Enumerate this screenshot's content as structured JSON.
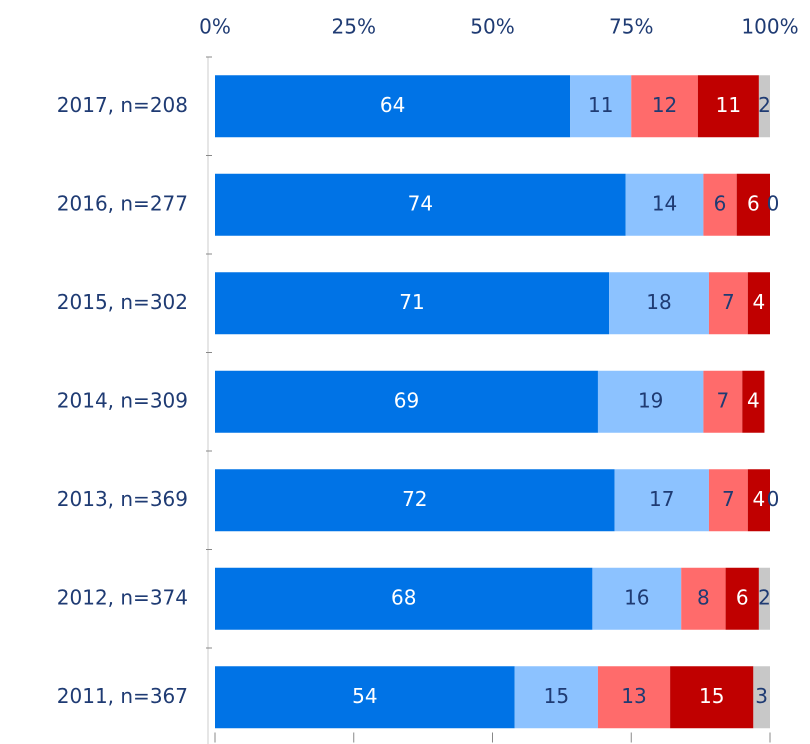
{
  "chart_data": {
    "type": "stacked_barh",
    "categories": [
      "2017,  n=208",
      "2016,  n=277",
      "2015,  n=302",
      "2014,  n=309",
      "2013,  n=369",
      "2012,  n=374",
      "2011,  n=367"
    ],
    "series": [
      {
        "color": "#0073e6",
        "values": [
          64,
          74,
          71,
          69,
          72,
          68,
          54
        ]
      },
      {
        "color": "#8cc2ff",
        "values": [
          11,
          14,
          18,
          19,
          17,
          16,
          15
        ]
      },
      {
        "color": "#ff6b6b",
        "values": [
          12,
          6,
          7,
          7,
          7,
          8,
          13
        ]
      },
      {
        "color": "#c00000",
        "values": [
          11,
          6,
          4,
          4,
          4,
          6,
          15
        ]
      },
      {
        "color": "#c8c8c8",
        "values": [
          2,
          0,
          null,
          null,
          0,
          2,
          3
        ]
      }
    ],
    "xlim": [
      0,
      100
    ],
    "xticks": [
      {
        "value": 0,
        "label": "0%"
      },
      {
        "value": 25,
        "label": "25%"
      },
      {
        "value": 50,
        "label": "50%"
      },
      {
        "value": 75,
        "label": "75%"
      },
      {
        "value": 100,
        "label": "100%"
      }
    ]
  }
}
